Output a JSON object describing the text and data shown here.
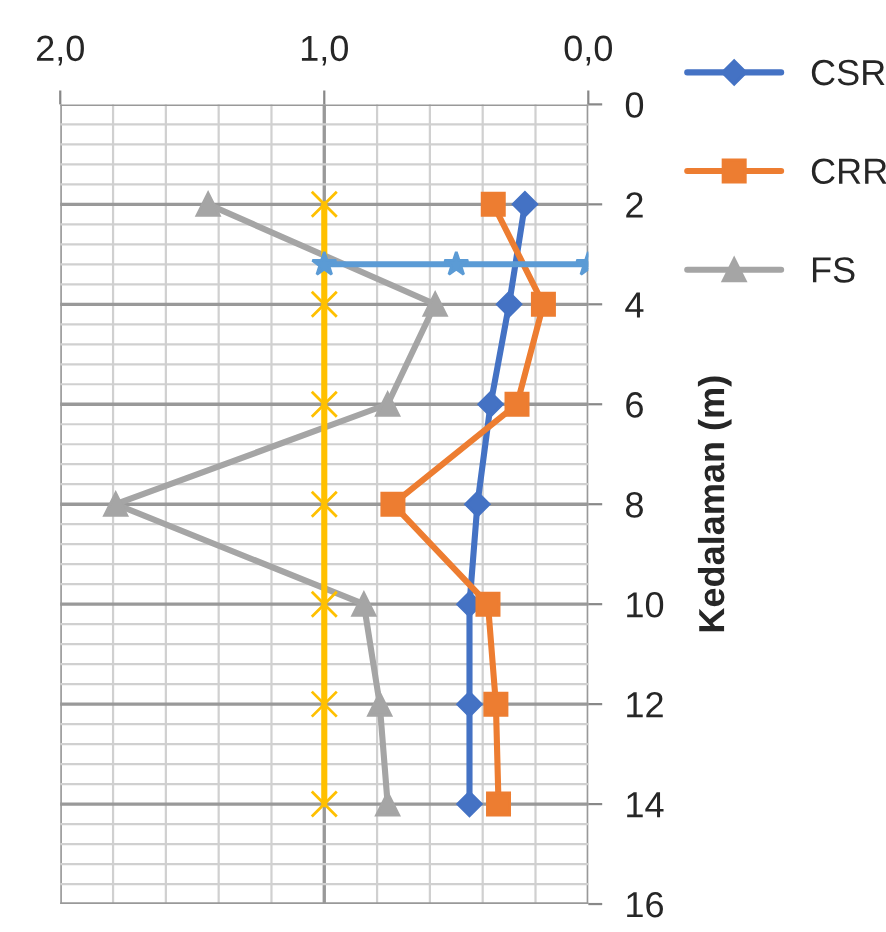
{
  "chart_data": {
    "type": "line",
    "orientation": "horizontal",
    "ylabel": "Kedalaman (m)",
    "xlim": [
      2,
      0
    ],
    "xticks": [
      {
        "value": 2,
        "label": "2,0"
      },
      {
        "value": 1,
        "label": "1,0"
      },
      {
        "value": 0,
        "label": "0,0"
      }
    ],
    "ylim": [
      16,
      0
    ],
    "yticks": [
      0,
      2,
      4,
      6,
      8,
      10,
      12,
      14,
      16
    ],
    "grid": true,
    "legend": "top right",
    "line_style": "solid",
    "series": [
      {
        "name": "CSR",
        "color": "#4472c4",
        "marker": "diamond",
        "x": [
          2,
          4,
          6,
          8,
          10,
          12,
          14
        ],
        "values": [
          0.24,
          0.3,
          0.37,
          0.42,
          0.45,
          0.45,
          0.45
        ]
      },
      {
        "name": "CRR",
        "color": "#ed7d31",
        "marker": "square",
        "x": [
          2,
          4,
          6,
          8,
          10,
          12,
          14
        ],
        "values": [
          0.36,
          0.17,
          0.27,
          0.74,
          0.38,
          0.35,
          0.34
        ]
      },
      {
        "name": "FS",
        "color": "#a5a5a5",
        "marker": "triangle",
        "x": [
          2,
          4,
          6,
          8,
          10,
          12,
          14
        ],
        "values": [
          1.44,
          0.58,
          0.76,
          1.79,
          0.85,
          0.79,
          0.76
        ]
      },
      {
        "color": "#ffc000",
        "marker": "cross",
        "x": [
          2,
          4,
          6,
          8,
          10,
          12,
          14
        ],
        "values": [
          1,
          1,
          1,
          1,
          1,
          1,
          1
        ]
      },
      {
        "color": "#5b9bd5",
        "marker": "star",
        "x": [
          3.2,
          3.2,
          3.2
        ],
        "values": [
          1.0,
          0.5,
          0.0
        ]
      }
    ]
  }
}
